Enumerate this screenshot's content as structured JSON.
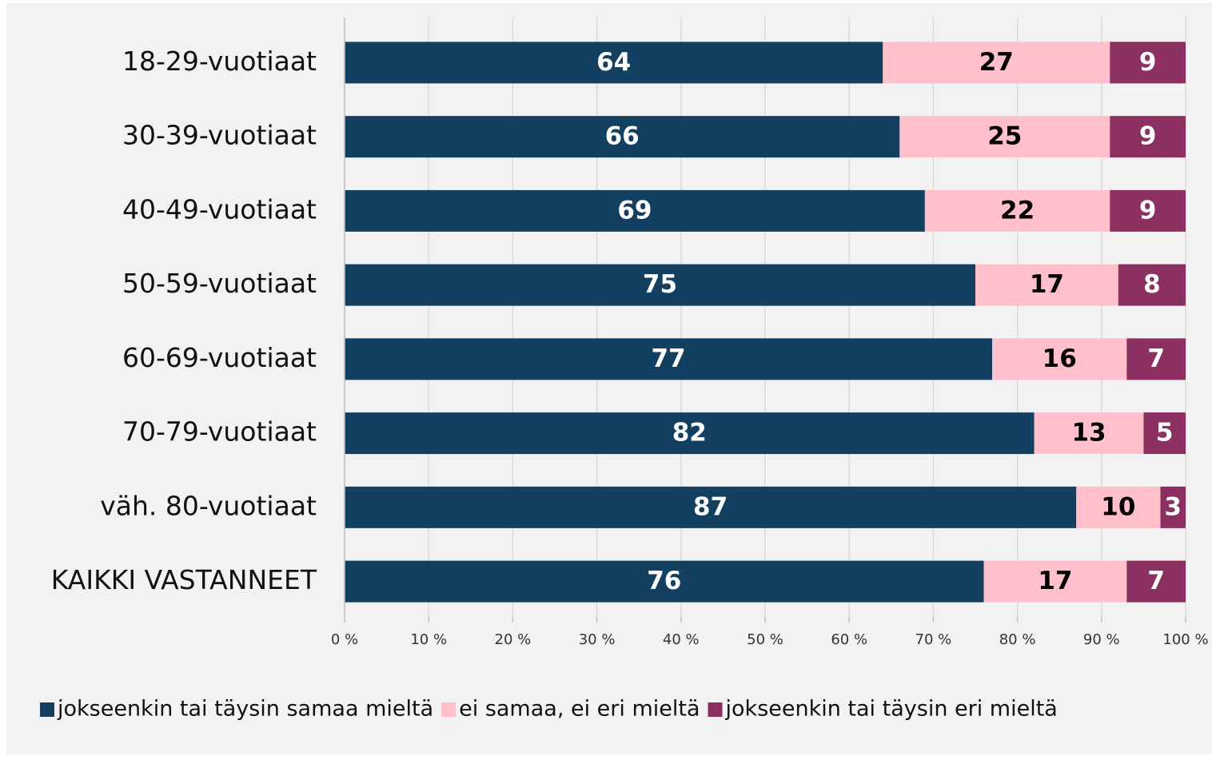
{
  "chart_data": {
    "type": "stacked_bar_horizontal",
    "categories": [
      "18-29-vuotiaat",
      "30-39-vuotiaat",
      "40-49-vuotiaat",
      "50-59-vuotiaat",
      "60-69-vuotiaat",
      "70-79-vuotiaat",
      "väh. 80-vuotiaat",
      "KAIKKI VASTANNEET"
    ],
    "series": [
      {
        "name": "jokseenkin tai täysin samaa mieltä",
        "color": "#133f60",
        "label_color": "#ffffff",
        "values": [
          64,
          66,
          69,
          75,
          77,
          82,
          87,
          76
        ]
      },
      {
        "name": "ei samaa, ei eri mieltä",
        "color": "#ffc0cb",
        "label_color": "#000000",
        "values": [
          27,
          25,
          22,
          17,
          16,
          13,
          10,
          17
        ]
      },
      {
        "name": "jokseenkin tai täysin eri mieltä",
        "color": "#8b3060",
        "label_color": "#ffffff",
        "values": [
          9,
          9,
          9,
          8,
          7,
          5,
          3,
          7
        ]
      }
    ],
    "xlim": [
      0,
      100
    ],
    "xticks": [
      {
        "value": 0,
        "label": "0 %"
      },
      {
        "value": 10,
        "label": "10 %"
      },
      {
        "value": 20,
        "label": "20 %"
      },
      {
        "value": 30,
        "label": "30 %"
      },
      {
        "value": 40,
        "label": "40 %"
      },
      {
        "value": 50,
        "label": "50 %"
      },
      {
        "value": 60,
        "label": "60 %"
      },
      {
        "value": 70,
        "label": "70 %"
      },
      {
        "value": 80,
        "label": "80 %"
      },
      {
        "value": 90,
        "label": "90 %"
      },
      {
        "value": 100,
        "label": "100 %"
      }
    ],
    "grid": true,
    "legend": "bottom"
  }
}
